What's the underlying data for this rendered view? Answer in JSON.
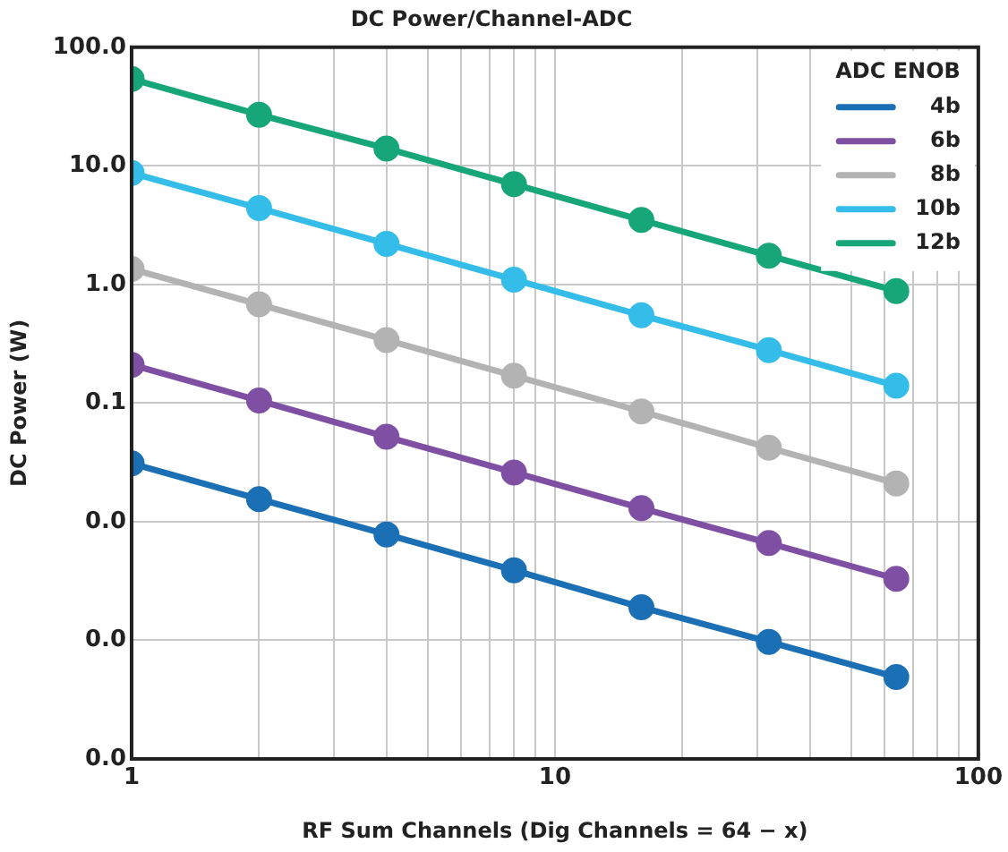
{
  "chart_data": {
    "type": "line",
    "title": "DC Power/Channel-ADC",
    "xlabel": "RF Sum Channels (Dig Channels = 64 − x)",
    "ylabel": "DC Power (W)",
    "legend_title": "ADC ENOB",
    "x": [
      1,
      2,
      4,
      8,
      16,
      32,
      64
    ],
    "series": [
      {
        "name": "4b",
        "color": "#1a6fb5",
        "values": [
          0.031,
          0.0155,
          0.0078,
          0.0039,
          0.0019,
          0.00097,
          0.00049
        ]
      },
      {
        "name": "6b",
        "color": "#7e4fa3",
        "values": [
          0.21,
          0.105,
          0.052,
          0.026,
          0.013,
          0.0066,
          0.0033
        ]
      },
      {
        "name": "8b",
        "color": "#b3b3b3",
        "values": [
          1.35,
          0.68,
          0.34,
          0.17,
          0.085,
          0.042,
          0.021
        ]
      },
      {
        "name": "10b",
        "color": "#33bde8",
        "values": [
          8.7,
          4.4,
          2.2,
          1.1,
          0.55,
          0.28,
          0.14
        ]
      },
      {
        "name": "12b",
        "color": "#17a57a",
        "values": [
          54,
          27,
          14,
          7,
          3.5,
          1.75,
          0.88
        ]
      }
    ],
    "log": "xy",
    "xlim": [
      1,
      100
    ],
    "ylim": [
      0.0001,
      100
    ],
    "xticks": [
      1,
      {
        "value": 2,
        "label": null
      },
      {
        "value": 3,
        "label": null
      },
      {
        "value": 4,
        "label": null
      },
      {
        "value": 5,
        "label": null
      },
      {
        "value": 6,
        "label": null
      },
      {
        "value": 7,
        "label": null
      },
      {
        "value": 8,
        "label": null
      },
      {
        "value": 9,
        "label": null
      },
      10,
      {
        "value": 20,
        "label": null
      },
      {
        "value": 30,
        "label": null
      },
      {
        "value": 40,
        "label": null
      },
      {
        "value": 50,
        "label": null
      },
      {
        "value": 60,
        "label": null
      },
      {
        "value": 70,
        "label": null
      },
      {
        "value": 80,
        "label": null
      },
      {
        "value": 90,
        "label": null
      },
      100
    ],
    "yticks": [
      {
        "value": 0.0001,
        "label": "0.0"
      },
      {
        "value": 0.001,
        "label": "0.0"
      },
      {
        "value": 0.01,
        "label": "0.0"
      },
      {
        "value": 0.1,
        "label": "0.1"
      },
      {
        "value": 1,
        "label": "1.0"
      },
      {
        "value": 10,
        "label": "10.0"
      },
      {
        "value": 100,
        "label": "100.0"
      }
    ],
    "grid": true,
    "legend": "top right",
    "marker": "circle",
    "line_style": "solid"
  }
}
